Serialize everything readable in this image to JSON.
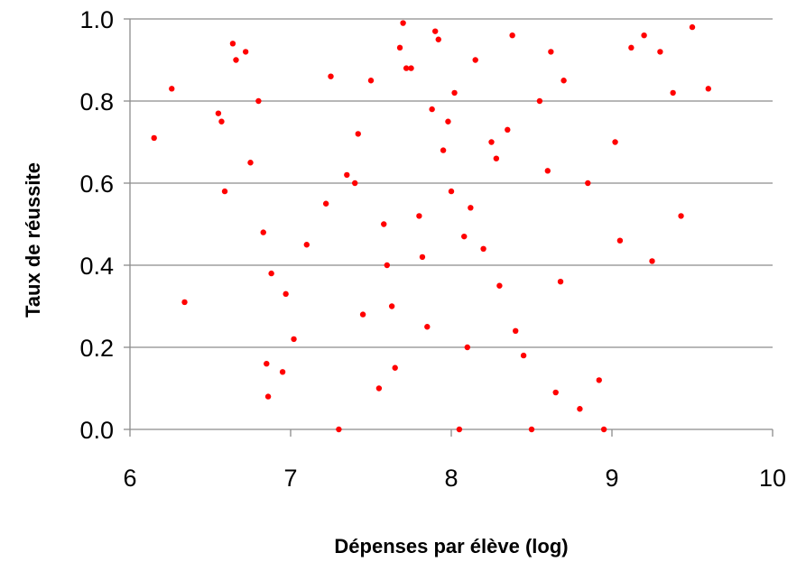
{
  "chart_data": {
    "type": "scatter",
    "title": "",
    "xlabel": "Dépenses par élève (log)",
    "ylabel": "Taux de réussite",
    "xlim": [
      6,
      10
    ],
    "ylim": [
      0.0,
      1.0
    ],
    "x_ticks": [
      6,
      7,
      8,
      9,
      10
    ],
    "y_ticks": [
      0.0,
      0.2,
      0.4,
      0.6,
      0.8,
      1.0
    ],
    "x_tick_labels": [
      "6",
      "7",
      "8",
      "9",
      "10"
    ],
    "y_tick_labels": [
      "0.0",
      "0.2",
      "0.4",
      "0.6",
      "0.8",
      "1.0"
    ],
    "grid": "horizontal",
    "legend": "none",
    "marker_color": "#ff0000",
    "series": [
      {
        "x": [
          6.15,
          6.26,
          6.34,
          6.55,
          6.57,
          6.59,
          6.64,
          6.66,
          6.72,
          6.75,
          6.8,
          6.83,
          6.85,
          6.86,
          6.88,
          6.95,
          6.97,
          7.02,
          7.1,
          7.22,
          7.3,
          7.35,
          7.42,
          7.5,
          7.55,
          7.6,
          7.63,
          7.68,
          7.7,
          7.75,
          7.8,
          7.85,
          7.88,
          7.92,
          7.95,
          8.0,
          8.02,
          8.05,
          8.1,
          8.15,
          8.2,
          8.25,
          8.3,
          8.38,
          8.45,
          8.5,
          8.6,
          8.65,
          8.7,
          8.8,
          8.85,
          8.92,
          8.95,
          9.02,
          9.05,
          9.12,
          9.2,
          9.25,
          9.3,
          9.38,
          9.43,
          9.5,
          9.6,
          7.4,
          7.58,
          7.72,
          7.82,
          7.98,
          8.12,
          8.28,
          8.4,
          8.55,
          8.68,
          7.25,
          7.45,
          7.65,
          7.9,
          8.08,
          8.35,
          8.62
        ],
        "y": [
          0.71,
          0.83,
          0.31,
          0.77,
          0.75,
          0.58,
          0.94,
          0.9,
          0.92,
          0.65,
          0.8,
          0.48,
          0.16,
          0.08,
          0.38,
          0.14,
          0.33,
          0.22,
          0.45,
          0.55,
          0.0,
          0.62,
          0.72,
          0.85,
          0.1,
          0.4,
          0.3,
          0.93,
          0.99,
          0.88,
          0.52,
          0.25,
          0.78,
          0.95,
          0.68,
          0.58,
          0.82,
          0.0,
          0.2,
          0.9,
          0.44,
          0.7,
          0.35,
          0.96,
          0.18,
          0.0,
          0.63,
          0.09,
          0.85,
          0.05,
          0.6,
          0.12,
          0.0,
          0.7,
          0.46,
          0.93,
          0.96,
          0.41,
          0.92,
          0.82,
          0.52,
          0.98,
          0.83,
          0.6,
          0.5,
          0.88,
          0.42,
          0.75,
          0.54,
          0.66,
          0.24,
          0.8,
          0.36,
          0.86,
          0.28,
          0.15,
          0.97,
          0.47,
          0.73,
          0.92
        ]
      }
    ]
  }
}
